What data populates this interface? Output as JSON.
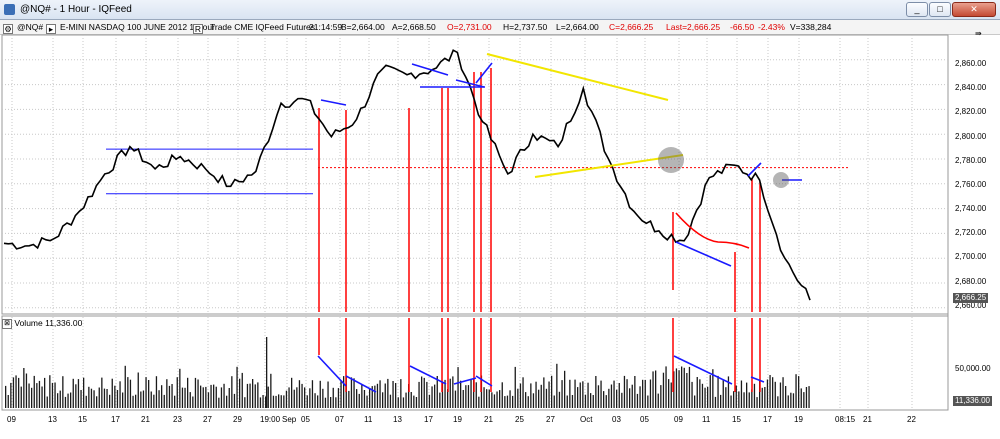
{
  "window": {
    "title": "@NQ# - 1 Hour - IQFeed",
    "buttons": [
      "_",
      "□",
      "✕"
    ]
  },
  "info": {
    "symbol": "@NQ#",
    "description": "E-MINI NASDAQ 100 JUNE 2012  1 Hour",
    "exchange": "Trade  CME  IQFeed  Futures",
    "time": "21:14:59",
    "bid": "B=2,664.00",
    "ask": "A=2,668.50",
    "open": "O=2,731.00",
    "high": "H=2,737.50",
    "low": "L=2,664.00",
    "close": "C=2,666.25",
    "last": "Last=2,666.25",
    "change": "-66.50",
    "change_pct": "-2.43%",
    "volume": "V=338,284"
  },
  "volume_panel": {
    "label": "Volume",
    "value": "11,336.00",
    "axis_label": "50,000.00",
    "current_tag": "11,336.00"
  },
  "price_axis": {
    "labels": [
      "2,860.00",
      "2,840.00",
      "2,820.00",
      "2,800.00",
      "2,780.00",
      "2,760.00",
      "2,740.00",
      "2,720.00",
      "2,700.00",
      "2,680.00",
      "2,660.00"
    ],
    "current_tag": "2,666.25"
  },
  "time_axis": {
    "labels": [
      "09",
      "13",
      "15",
      "17",
      "21",
      "23",
      "27",
      "29",
      "19:00",
      "Sep",
      "05",
      "07",
      "11",
      "13",
      "17",
      "19",
      "21",
      "25",
      "27",
      "Oct",
      "03",
      "05",
      "09",
      "11",
      "15",
      "17",
      "19",
      "08:15",
      "21",
      "22"
    ]
  },
  "chart_data": {
    "type": "line",
    "y_range": [
      2655,
      2880
    ],
    "price_keypoints": [
      {
        "x": "Aug 07",
        "y": 2712
      },
      {
        "x": "Aug 09",
        "y": 2710
      },
      {
        "x": "Aug 13",
        "y": 2716
      },
      {
        "x": "Aug 15",
        "y": 2738
      },
      {
        "x": "Aug 17",
        "y": 2768
      },
      {
        "x": "Aug 21",
        "y": 2790
      },
      {
        "x": "Aug 23",
        "y": 2772
      },
      {
        "x": "Aug 27",
        "y": 2782
      },
      {
        "x": "Aug 29",
        "y": 2772
      },
      {
        "x": "Aug 31",
        "y": 2758
      },
      {
        "x": "Sep 04",
        "y": 2770
      },
      {
        "x": "Sep 05",
        "y": 2825
      },
      {
        "x": "Sep 07",
        "y": 2828
      },
      {
        "x": "Sep 11",
        "y": 2798
      },
      {
        "x": "Sep 13",
        "y": 2812
      },
      {
        "x": "Sep 14",
        "y": 2852
      },
      {
        "x": "Sep 17",
        "y": 2848
      },
      {
        "x": "Sep 19",
        "y": 2852
      },
      {
        "x": "Sep 21",
        "y": 2866
      },
      {
        "x": "Sep 25",
        "y": 2810
      },
      {
        "x": "Sep 26",
        "y": 2768
      },
      {
        "x": "Sep 27",
        "y": 2800
      },
      {
        "x": "Oct 02",
        "y": 2790
      },
      {
        "x": "Oct 05",
        "y": 2837
      },
      {
        "x": "Oct 08",
        "y": 2780
      },
      {
        "x": "Oct 09",
        "y": 2738
      },
      {
        "x": "Oct 11",
        "y": 2722
      },
      {
        "x": "Oct 15",
        "y": 2714
      },
      {
        "x": "Oct 16",
        "y": 2765
      },
      {
        "x": "Oct 17",
        "y": 2775
      },
      {
        "x": "Oct 18",
        "y": 2763
      },
      {
        "x": "Oct 19",
        "y": 2700
      },
      {
        "x": "Oct 19 close",
        "y": 2666.25
      }
    ],
    "reference_line": 2773,
    "horizontal_range_lines": [
      2788,
      2752
    ],
    "volume_reference": 50000,
    "volume_current": 11336
  },
  "colors": {
    "price_line": "#000000",
    "trendline_blue": "#1a1aff",
    "trendline_yellow": "#f2e600",
    "marker_red": "#ff0000",
    "grid": "#c8c8c8",
    "volume_bar": "#1a1a1a"
  }
}
